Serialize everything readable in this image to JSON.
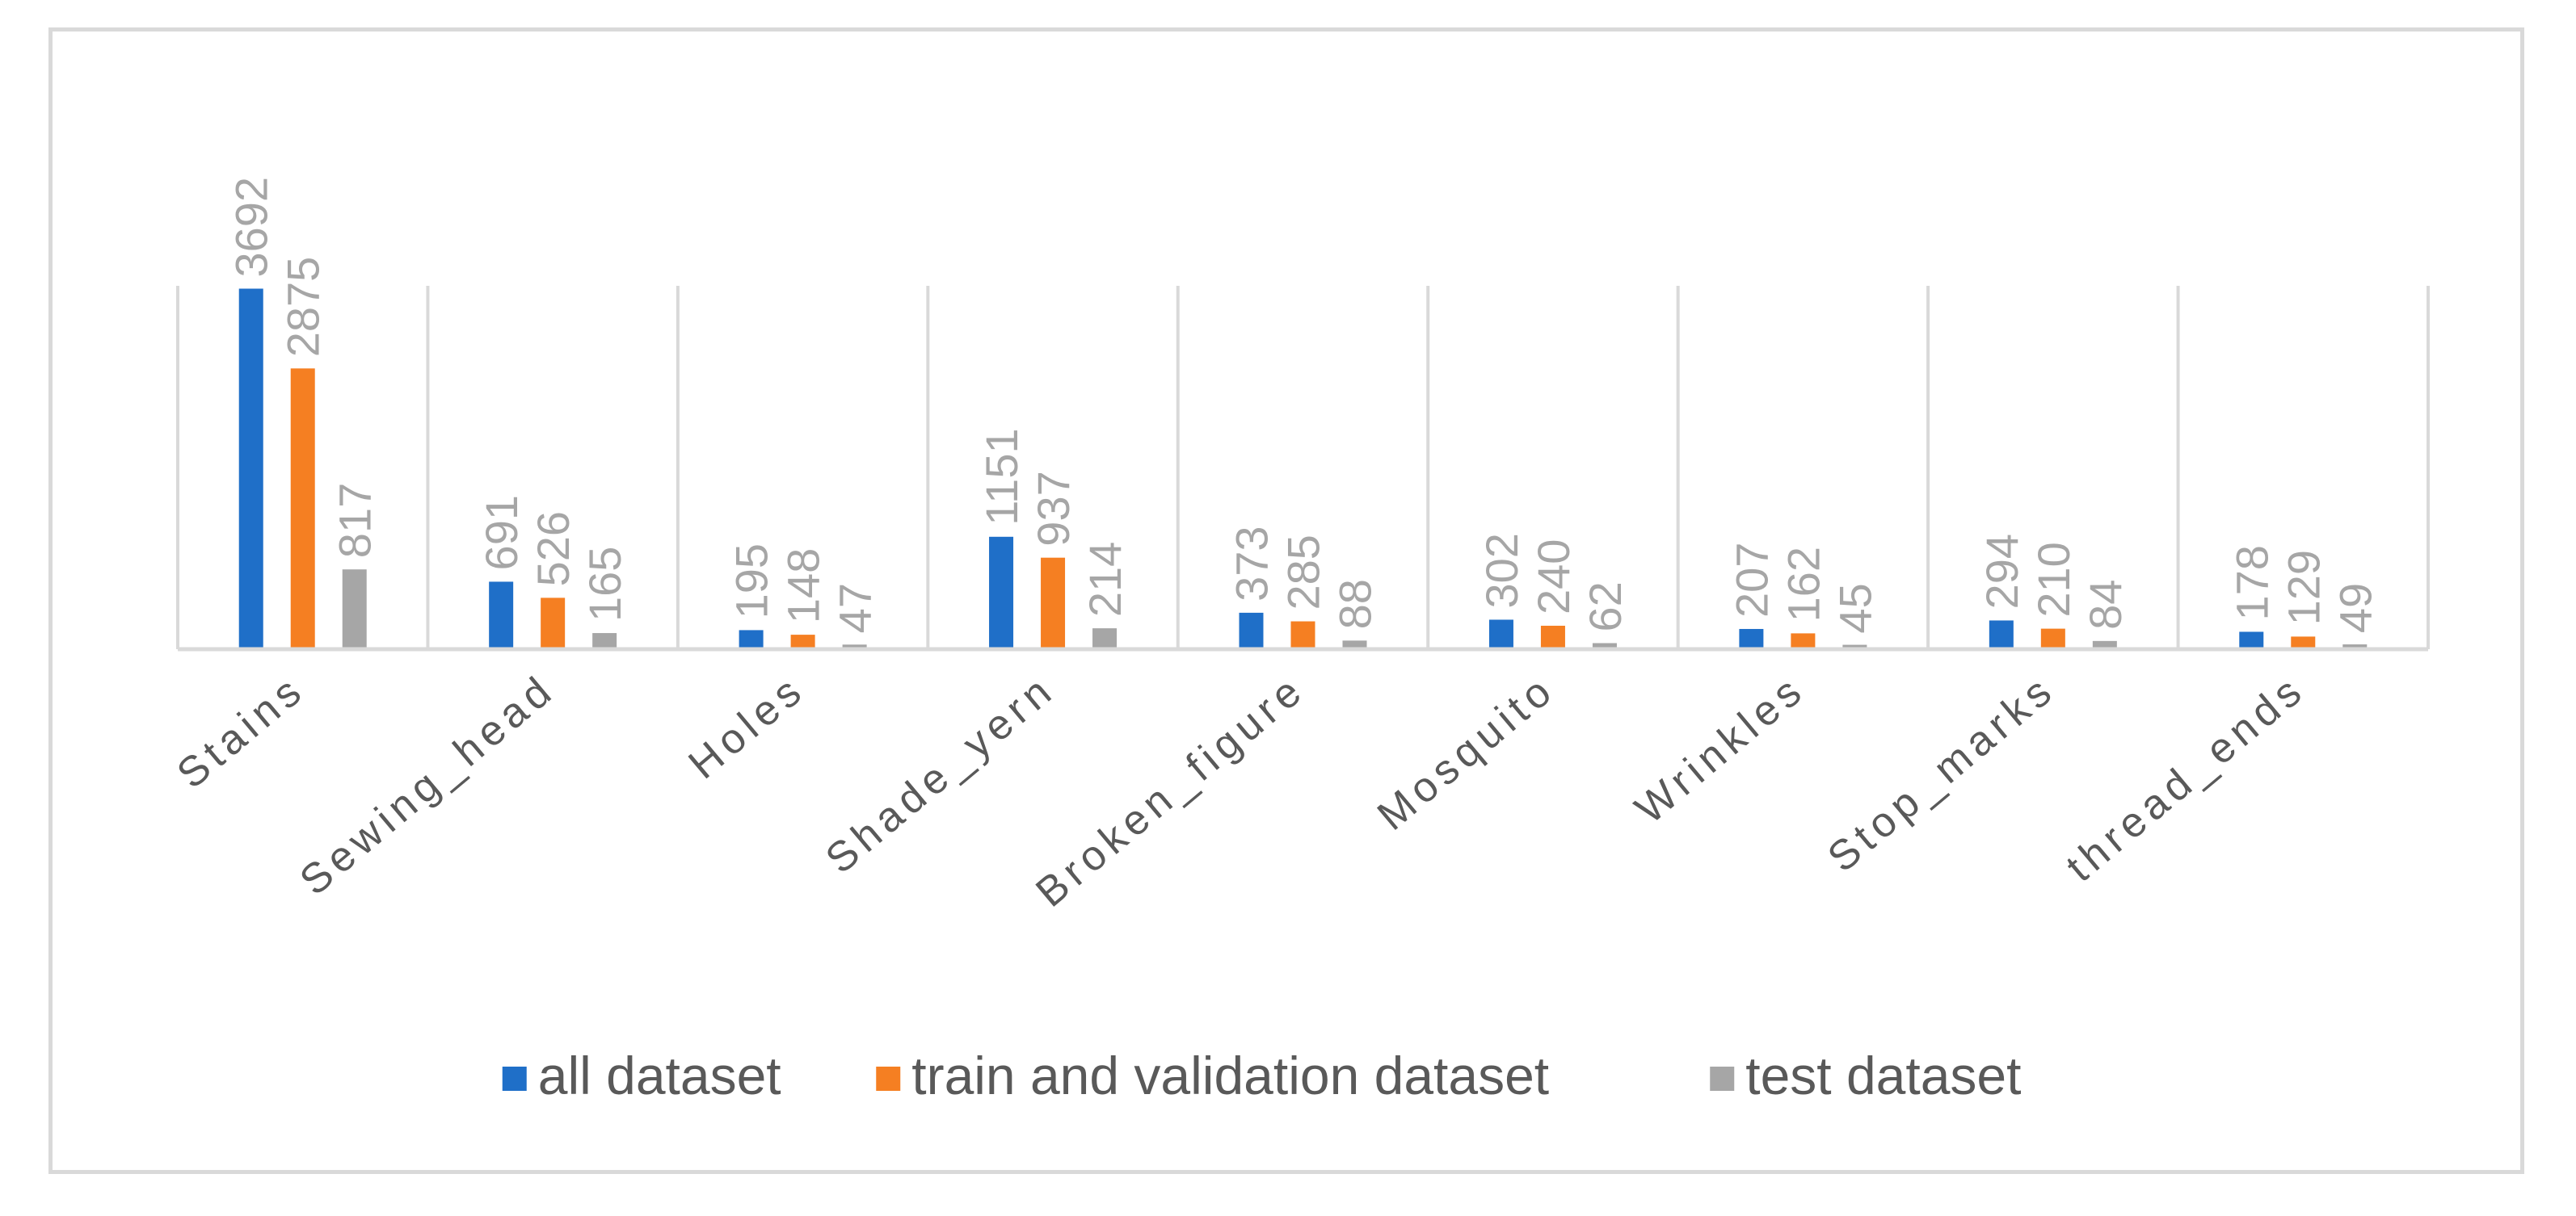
{
  "chart_data": {
    "type": "bar",
    "title": "",
    "xlabel": "",
    "ylabel": "",
    "categories": [
      "Stains",
      "Sewing_head",
      "Holes",
      "Shade_yern",
      "Broken_figure",
      "Mosquito",
      "Wrinkles",
      "Stop_marks",
      "thread_ends"
    ],
    "series": [
      {
        "name": "all dataset",
        "color": "#1f6fc8",
        "values": [
          3692,
          691,
          195,
          1151,
          373,
          302,
          207,
          294,
          178
        ]
      },
      {
        "name": "train and validation dataset",
        "color": "#f57f22",
        "values": [
          2875,
          526,
          148,
          937,
          285,
          240,
          162,
          210,
          129
        ]
      },
      {
        "name": "test dataset",
        "color": "#a6a6a6",
        "values": [
          817,
          165,
          47,
          214,
          88,
          62,
          45,
          84,
          49
        ]
      }
    ],
    "ylim": [
      0,
      4000
    ],
    "grid": "vertical category separators",
    "legend": "bottom-center"
  }
}
